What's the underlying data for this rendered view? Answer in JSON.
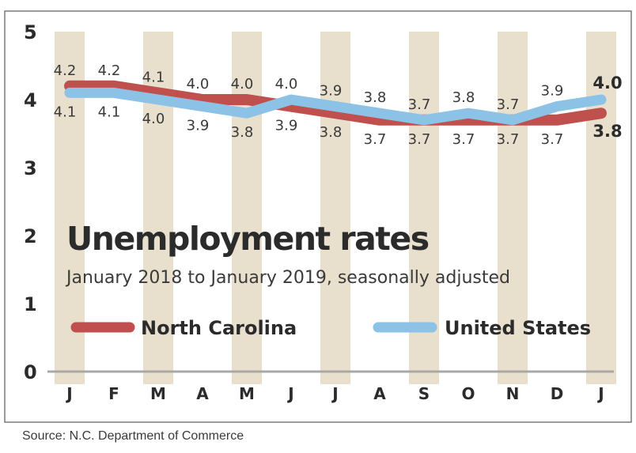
{
  "chart_data": {
    "type": "line",
    "title": "Unemployment rates",
    "subtitle": "January 2018 to January 2019, seasonally adjusted",
    "categories": [
      "J",
      "F",
      "M",
      "A",
      "M",
      "J",
      "J",
      "A",
      "S",
      "O",
      "N",
      "D",
      "J"
    ],
    "yticks": [
      "5",
      "4",
      "3",
      "2",
      "1",
      "0"
    ],
    "ylim": [
      0,
      5
    ],
    "series": [
      {
        "name": "North Carolina",
        "color": "#c0504d",
        "values": [
          4.2,
          4.2,
          4.1,
          4.0,
          4.0,
          3.9,
          3.8,
          3.7,
          3.7,
          3.7,
          3.7,
          3.7,
          3.8
        ],
        "labels": [
          "4.2",
          "4.2",
          "4.1",
          "4.0",
          "4.0",
          "3.9",
          "3.8",
          "3.7",
          "3.7",
          "3.7",
          "3.7",
          "3.7",
          "3.8"
        ]
      },
      {
        "name": "United States",
        "color": "#8cc2e6",
        "values": [
          4.1,
          4.1,
          4.0,
          3.9,
          3.8,
          4.0,
          3.9,
          3.8,
          3.7,
          3.8,
          3.7,
          3.9,
          4.0
        ],
        "labels": [
          "4.1",
          "4.1",
          "4.0",
          "3.9",
          "3.8",
          "4.0",
          "3.9",
          "3.8",
          "3.7",
          "3.8",
          "3.7",
          "3.9",
          "4.0"
        ]
      }
    ],
    "top_labels": [
      "4.2",
      "4.2",
      "4.1",
      "4.0",
      "4.0",
      "4.0",
      "3.9",
      "3.8",
      "3.7",
      "3.8",
      "3.7",
      "3.9",
      "4.0"
    ],
    "bottom_labels": [
      "4.1",
      "4.1",
      "4.0",
      "3.9",
      "3.8",
      "3.9",
      "3.8",
      "3.7",
      "3.7",
      "3.7",
      "3.7",
      "3.7",
      "3.8"
    ],
    "grid": false,
    "legend": "center",
    "stripe_color": "#e8e0cd",
    "source": "Source: N.C. Department of Commerce"
  }
}
